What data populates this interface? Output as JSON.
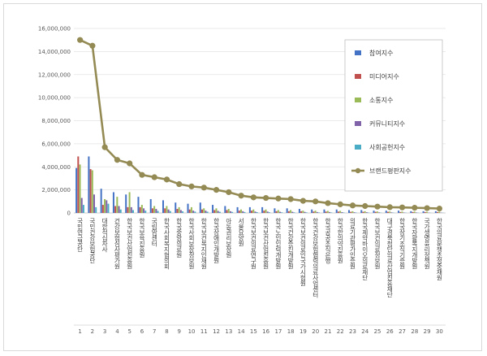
{
  "chart_data": {
    "type": "bar",
    "overlay_line_series": "브랜드평판지수",
    "ylim": [
      0,
      16000000
    ],
    "yticks": [
      "0",
      "2,000,000",
      "4,000,000",
      "6,000,000",
      "8,000,000",
      "10,000,000",
      "12,000,000",
      "14,000,000",
      "16,000,000"
    ],
    "grid": true,
    "legend_position": "right",
    "index_labels": [
      "1",
      "2",
      "3",
      "4",
      "5",
      "6",
      "7",
      "8",
      "9",
      "10",
      "11",
      "12",
      "13",
      "14",
      "15",
      "16",
      "17",
      "18",
      "19",
      "20",
      "21",
      "22",
      "23",
      "24",
      "25",
      "26",
      "27",
      "28",
      "29",
      "30"
    ],
    "categories": [
      "국민연금공단",
      "국민건강보험공단",
      "대한적십자사",
      "건강보험심사평가원",
      "한국보건산업진흥원",
      "한국보육진흥원",
      "국립암센터",
      "한국사회복지협의회",
      "한국중앙의료원",
      "한국사회보장정보원",
      "한국보건복지인재원",
      "한국장애인개발원",
      "아동권리보장원",
      "서울요양원",
      "한국보건의료연구원",
      "한국보건산업진흥원",
      "한국노인인력개발원",
      "한국건강증진개발원",
      "한국보건의료인국가시험원",
      "한국건강보험협력의료사업센터",
      "한국공공조직은행",
      "한국한의약진흥원",
      "의료기관평가인증원",
      "한국제약바이오의료재단",
      "한국보건의료정보원",
      "대구경북첨단의료산업진흥재단",
      "한국장기조직기증원",
      "한국자활복지개발원",
      "국가생명윤리정책원",
      "한국의료분쟁조정중재원"
    ],
    "series": [
      {
        "name": "참여지수",
        "color": "#4472c4",
        "values": [
          3900000,
          4900000,
          2100000,
          1800000,
          1600000,
          1400000,
          1200000,
          1100000,
          900000,
          800000,
          900000,
          700000,
          600000,
          500000,
          500000,
          500000,
          400000,
          400000,
          350000,
          300000,
          300000,
          300000,
          250000,
          250000,
          200000,
          200000,
          200000,
          150000,
          150000,
          150000
        ]
      },
      {
        "name": "미디어지수",
        "color": "#c0504d",
        "values": [
          4900000,
          3800000,
          700000,
          600000,
          500000,
          500000,
          400000,
          400000,
          350000,
          300000,
          300000,
          250000,
          250000,
          200000,
          200000,
          200000,
          150000,
          150000,
          150000,
          120000,
          120000,
          120000,
          100000,
          100000,
          100000,
          100000,
          80000,
          80000,
          80000,
          80000
        ]
      },
      {
        "name": "소통지수",
        "color": "#9bbb59",
        "values": [
          4200000,
          3700000,
          1200000,
          1400000,
          1800000,
          700000,
          600000,
          600000,
          500000,
          500000,
          400000,
          400000,
          350000,
          300000,
          300000,
          300000,
          250000,
          250000,
          200000,
          200000,
          180000,
          180000,
          150000,
          150000,
          130000,
          130000,
          120000,
          120000,
          100000,
          100000
        ]
      },
      {
        "name": "커뮤니티지수",
        "color": "#7f62a8",
        "values": [
          1300000,
          1600000,
          1100000,
          600000,
          500000,
          400000,
          350000,
          300000,
          250000,
          200000,
          200000,
          180000,
          150000,
          150000,
          120000,
          120000,
          100000,
          100000,
          90000,
          80000,
          80000,
          70000,
          60000,
          60000,
          50000,
          50000,
          40000,
          40000,
          30000,
          30000
        ]
      },
      {
        "name": "사회공헌지수",
        "color": "#4bacc6",
        "values": [
          700000,
          500000,
          800000,
          300000,
          250000,
          200000,
          180000,
          160000,
          140000,
          120000,
          110000,
          100000,
          90000,
          80000,
          70000,
          60000,
          55000,
          50000,
          45000,
          40000,
          40000,
          35000,
          30000,
          30000,
          25000,
          25000,
          20000,
          20000,
          15000,
          15000
        ]
      },
      {
        "name": "브랜드평판지수",
        "color": "#948a54",
        "type": "line",
        "values": [
          15000000,
          14500000,
          5700000,
          4600000,
          4300000,
          3300000,
          3100000,
          2900000,
          2500000,
          2300000,
          2200000,
          2000000,
          1800000,
          1500000,
          1350000,
          1300000,
          1250000,
          1200000,
          1050000,
          1000000,
          850000,
          750000,
          650000,
          600000,
          550000,
          500000,
          480000,
          450000,
          420000,
          380000
        ]
      }
    ]
  }
}
